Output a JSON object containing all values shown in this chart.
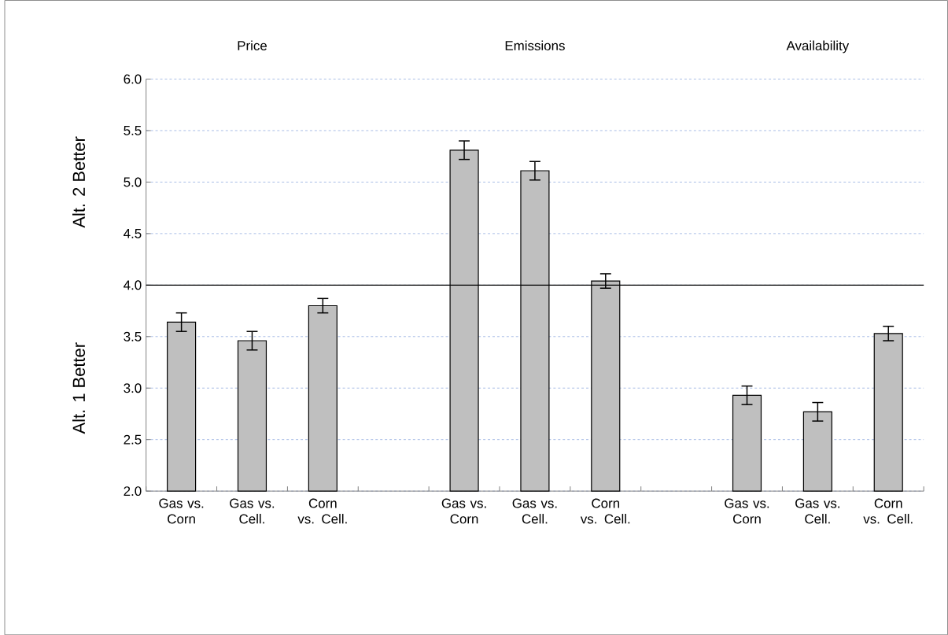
{
  "chart_data": {
    "type": "bar",
    "categories": [
      "Gas vs. Corn",
      "Gas vs. Cell.",
      "Corn vs. Cell.",
      null,
      "Gas vs. Corn",
      "Gas vs. Cell.",
      "Corn vs. Cell.",
      null,
      "Gas vs. Corn",
      "Gas vs. Cell.",
      "Corn vs. Cell."
    ],
    "values": [
      3.64,
      3.46,
      3.8,
      null,
      5.31,
      5.11,
      4.04,
      null,
      2.93,
      2.77,
      3.53
    ],
    "errors": [
      0.09,
      0.09,
      0.07,
      null,
      0.09,
      0.09,
      0.07,
      null,
      0.09,
      0.09,
      0.07
    ],
    "color": "#bfbfbf",
    "ylim": [
      2,
      6
    ],
    "yticks": [
      {
        "value": 2,
        "label": "2.0"
      },
      {
        "value": 2.5,
        "label": "2.5"
      },
      {
        "value": 3,
        "label": "3.0"
      },
      {
        "value": 3.5,
        "label": "3.5"
      },
      {
        "value": 4,
        "label": "4.0"
      },
      {
        "value": 4.5,
        "label": "4.5"
      },
      {
        "value": 5,
        "label": "5.0"
      },
      {
        "value": 5.5,
        "label": "5.5"
      },
      {
        "value": 6,
        "label": "6.0"
      }
    ],
    "grid": "y",
    "ref_lines": [
      {
        "axis": "y",
        "value": 4,
        "color": "#000000"
      }
    ],
    "annotations": [
      "Price",
      "Emissions",
      "Availability",
      "Alt. 2 Better",
      "Alt. 1 Better"
    ]
  }
}
